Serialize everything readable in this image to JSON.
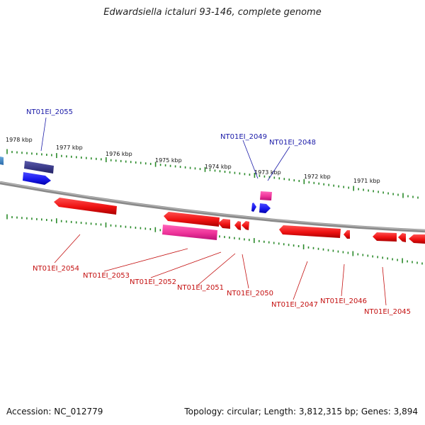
{
  "title": "Edwardsiella ictaluri 93-146, complete genome",
  "footer": {
    "accession": "Accession: NC_012779",
    "summary": "Topology: circular; Length: 3,812,315 bp; Genes: 3,894"
  },
  "colors": {
    "forward_gene": "#1a1aee",
    "reverse_gene": "#ee1111",
    "pseudo_gene": "#ee3399",
    "dark_gene": "#3a3a88",
    "tick": "#2a8a2a",
    "backbone": "#8a8a8a",
    "label_top": "#1a1aa8",
    "label_bottom": "#c41010"
  },
  "kbp_labels": [
    "1978 kbp",
    "1977 kbp",
    "1976 kbp",
    "1975 kbp",
    "1974 kbp",
    "1973 kbp",
    "1972 kbp",
    "1971 kbp"
  ],
  "top_labels": [
    "NT01EI_2055",
    "NT01EI_2049",
    "NT01EI_2048"
  ],
  "bottom_labels": [
    "NT01EI_2054",
    "NT01EI_2053",
    "NT01EI_2052",
    "NT01EI_2051",
    "NT01EI_2050",
    "NT01EI_2047",
    "NT01EI_2046",
    "NT01EI_2045"
  ]
}
